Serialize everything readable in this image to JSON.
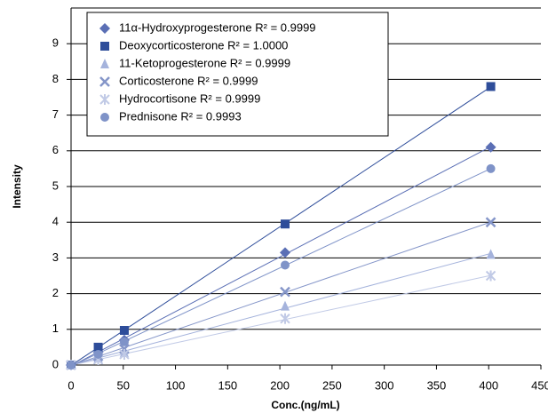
{
  "chart_data": {
    "type": "scatter",
    "x_label": "Conc.(ng/mL)",
    "y_label": "Intensity",
    "xlim": [
      0,
      450
    ],
    "xticks": [
      0,
      50,
      100,
      150,
      200,
      250,
      300,
      350,
      400,
      450
    ],
    "ylim": [
      0,
      10
    ],
    "yticks": [
      0,
      1,
      2,
      3,
      4,
      5,
      6,
      7,
      8,
      9
    ],
    "grid": true,
    "trendline": true,
    "legend": "upper left",
    "x": [
      0,
      26,
      51,
      205,
      402
    ],
    "series": [
      {
        "name": "11α-Hydroxyprogesterone R² = 0.9999",
        "color": "#5b6fb5",
        "marker": "diamond",
        "values": [
          0,
          0.35,
          0.7,
          3.15,
          6.1
        ]
      },
      {
        "name": "Deoxycorticosterone R² = 1.0000",
        "color": "#2e4d9a",
        "marker": "square",
        "values": [
          0,
          0.5,
          0.97,
          3.95,
          7.8
        ]
      },
      {
        "name": "11-Ketoprogesterone R² = 0.9999",
        "color": "#a5b3dc",
        "marker": "triangle",
        "values": [
          0,
          0.2,
          0.35,
          1.65,
          3.1
        ]
      },
      {
        "name": "Corticosterone R² = 0.9999",
        "color": "#8596c9",
        "marker": "x",
        "values": [
          0,
          0.25,
          0.45,
          2.05,
          4.0
        ]
      },
      {
        "name": "Hydrocortisone R² = 0.9999",
        "color": "#c1cae6",
        "marker": "star",
        "values": [
          0,
          0.15,
          0.3,
          1.3,
          2.5
        ]
      },
      {
        "name": "Prednisone R² = 0.9993",
        "color": "#7f93c8",
        "marker": "circle",
        "values": [
          0,
          0.3,
          0.65,
          2.8,
          5.5
        ]
      }
    ]
  }
}
